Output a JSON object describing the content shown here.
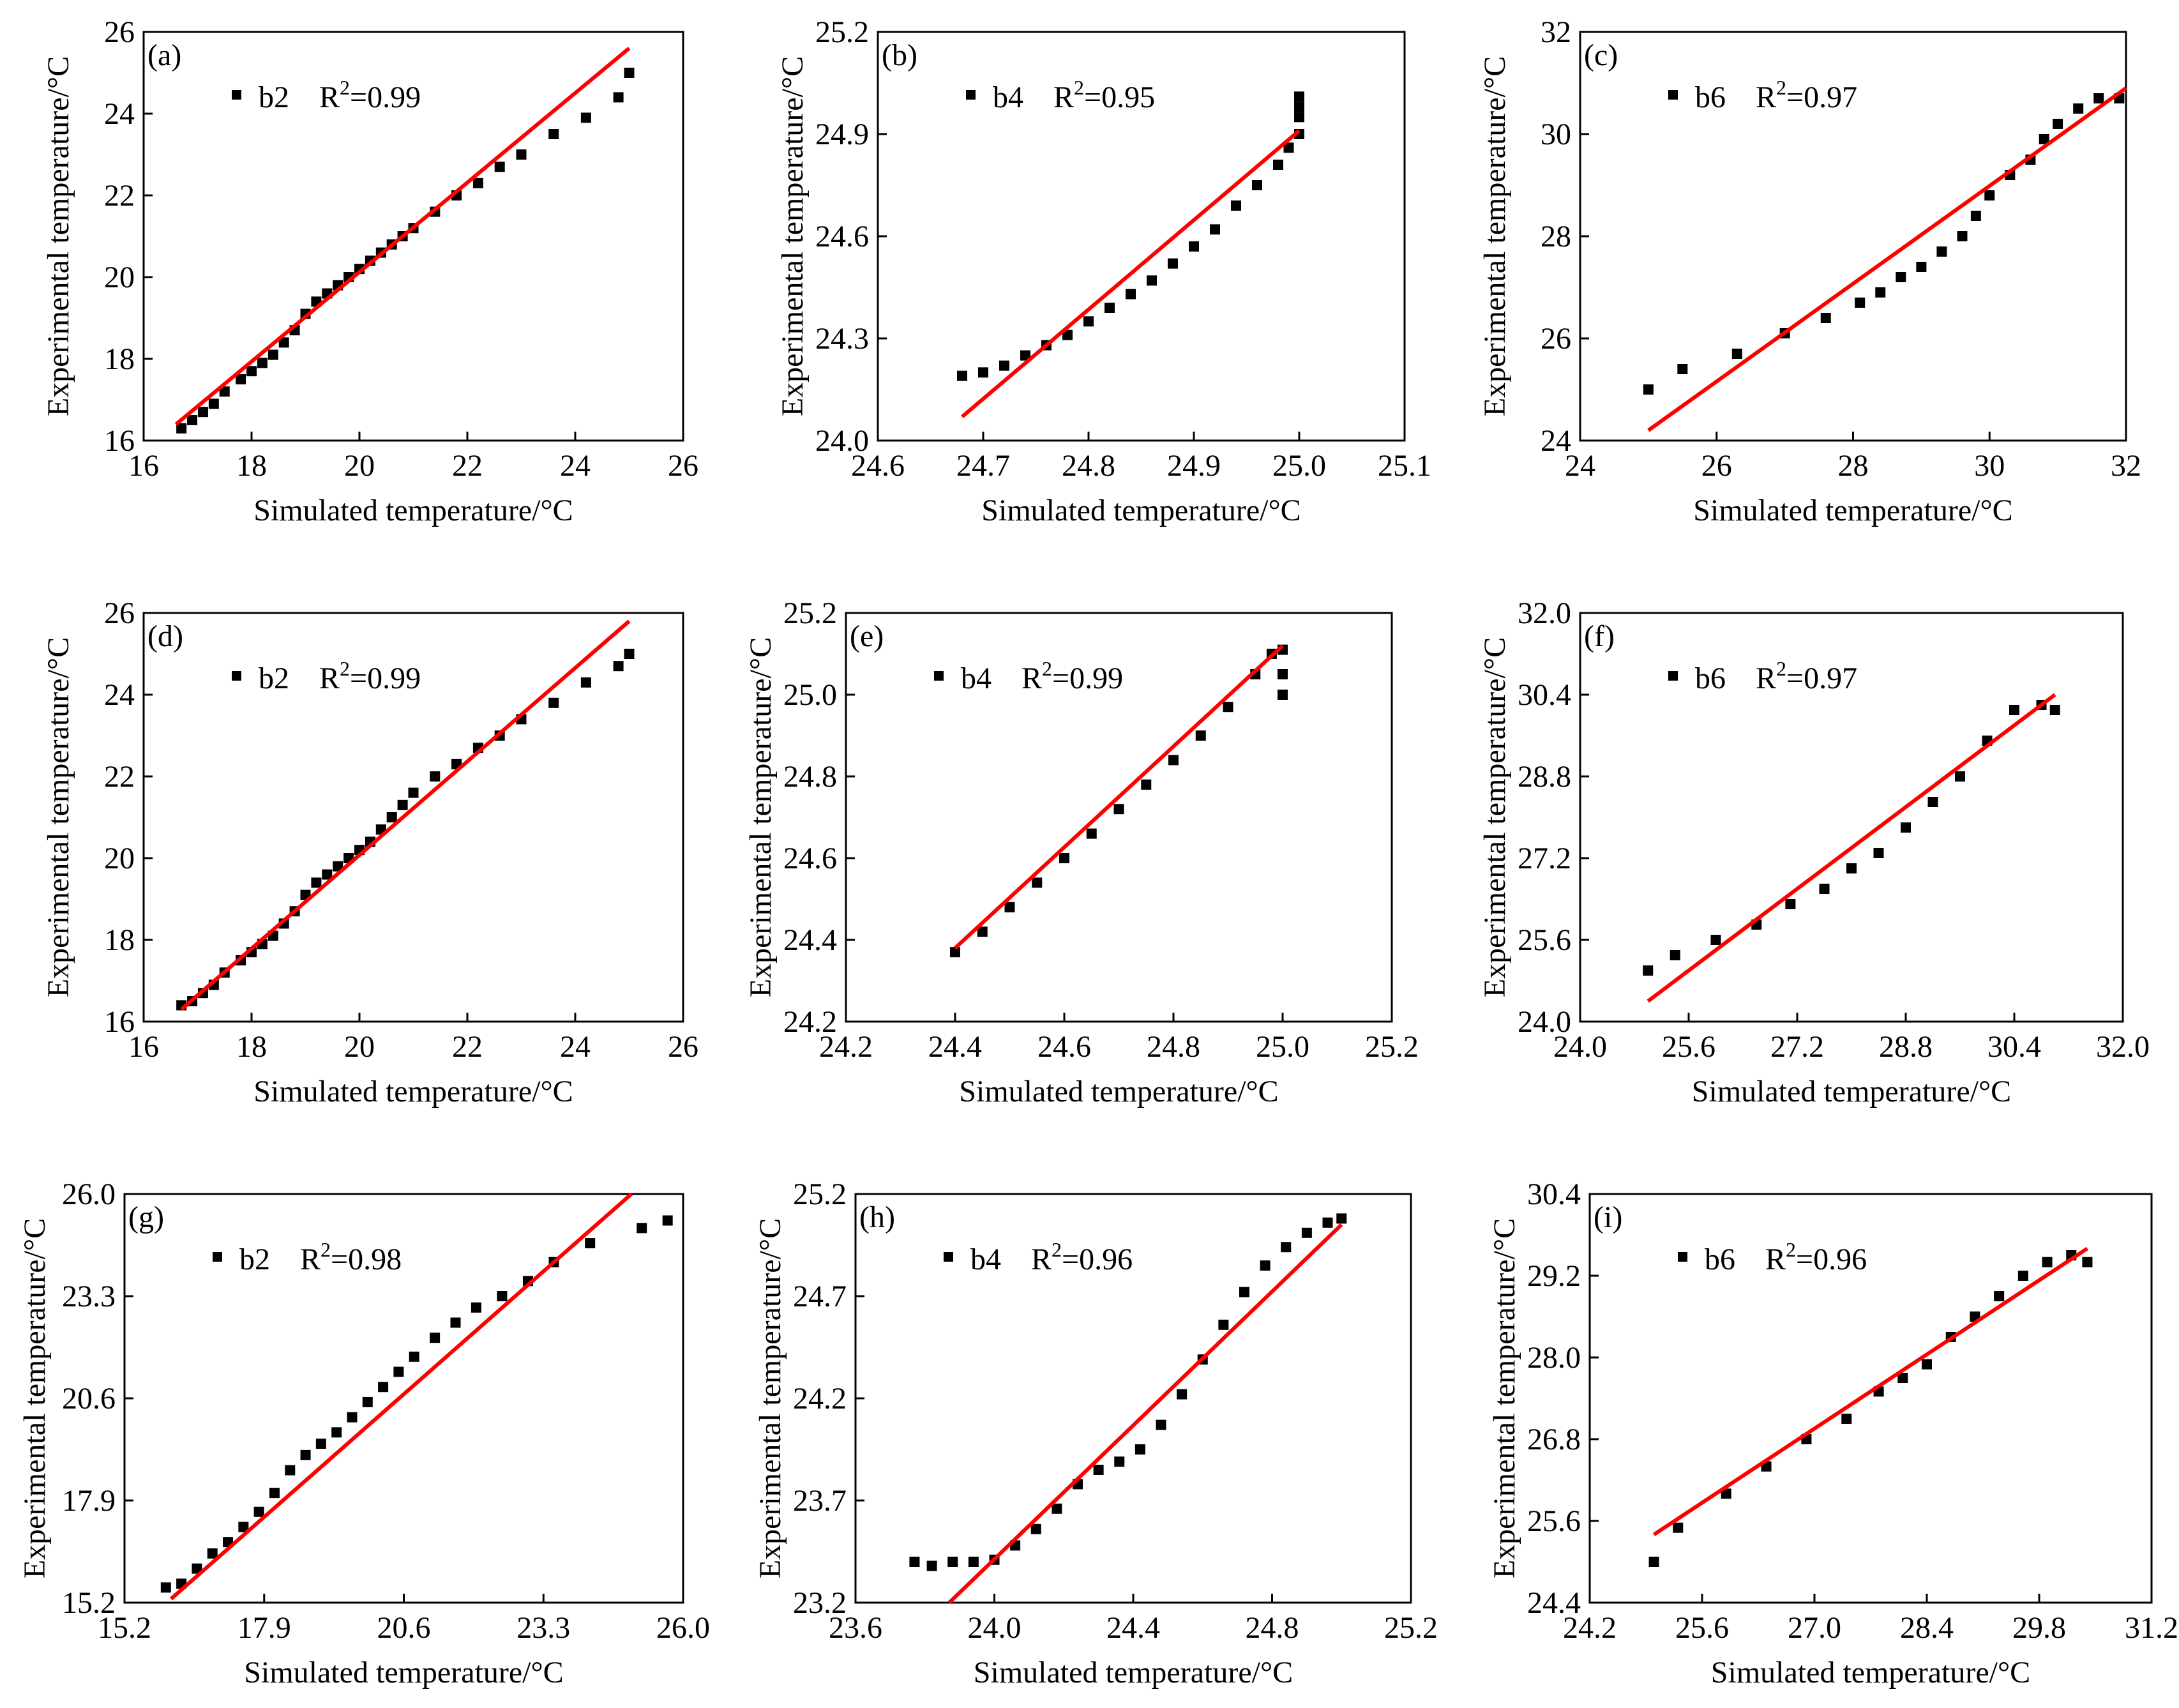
{
  "figure": {
    "xlabel": "Simulated temperature/°C",
    "ylabel": "Experimental temperature/°C",
    "colors": {
      "points": "#000000",
      "fit_line": "#ff0000",
      "axes": "#000000"
    }
  },
  "chart_data": [
    {
      "id": "a",
      "panel_label": "(a)",
      "type": "scatter",
      "legend": {
        "series": "b2",
        "r2_label": "R",
        "r2_sup": "2",
        "r2_value": "=0.99"
      },
      "xlim": [
        16,
        26
      ],
      "ylim": [
        16,
        26
      ],
      "xticks": [
        "16",
        "18",
        "20",
        "22",
        "24",
        "26"
      ],
      "yticks": [
        "16",
        "18",
        "20",
        "22",
        "24",
        "26"
      ],
      "x": [
        16.7,
        16.9,
        17.1,
        17.3,
        17.5,
        17.8,
        18.0,
        18.2,
        18.4,
        18.6,
        18.8,
        19.0,
        19.2,
        19.4,
        19.6,
        19.8,
        20.0,
        20.2,
        20.4,
        20.6,
        20.8,
        21.0,
        21.4,
        21.8,
        22.2,
        22.6,
        23.0,
        23.6,
        24.2,
        24.8,
        25.0
      ],
      "y": [
        16.3,
        16.5,
        16.7,
        16.9,
        17.2,
        17.5,
        17.7,
        17.9,
        18.1,
        18.4,
        18.7,
        19.1,
        19.4,
        19.6,
        19.8,
        20.0,
        20.2,
        20.4,
        20.6,
        20.8,
        21.0,
        21.2,
        21.6,
        22.0,
        22.3,
        22.7,
        23.0,
        23.5,
        23.9,
        24.4,
        25.0
      ],
      "fit": {
        "x": [
          16.6,
          25.0
        ],
        "y": [
          16.4,
          25.6
        ]
      }
    },
    {
      "id": "b",
      "panel_label": "(b)",
      "type": "scatter",
      "legend": {
        "series": "b4",
        "r2_label": "R",
        "r2_sup": "2",
        "r2_value": "=0.95"
      },
      "xlim": [
        24.6,
        25.1
      ],
      "ylim": [
        24.0,
        25.2
      ],
      "xticks": [
        "24.6",
        "24.7",
        "24.8",
        "24.9",
        "25.0",
        "25.1"
      ],
      "yticks": [
        "24.0",
        "24.3",
        "24.6",
        "24.9",
        "25.2"
      ],
      "x": [
        24.68,
        24.7,
        24.72,
        24.74,
        24.76,
        24.78,
        24.8,
        24.82,
        24.84,
        24.86,
        24.88,
        24.9,
        24.92,
        24.94,
        24.96,
        24.98,
        24.99,
        25.0,
        25.0,
        25.0,
        25.0
      ],
      "y": [
        24.19,
        24.2,
        24.22,
        24.25,
        24.28,
        24.31,
        24.35,
        24.39,
        24.43,
        24.47,
        24.52,
        24.57,
        24.62,
        24.69,
        24.75,
        24.81,
        24.86,
        24.9,
        24.95,
        24.98,
        25.01
      ],
      "fit": {
        "x": [
          24.68,
          25.0
        ],
        "y": [
          24.07,
          24.91
        ]
      }
    },
    {
      "id": "c",
      "panel_label": "(c)",
      "type": "scatter",
      "legend": {
        "series": "b6",
        "r2_label": "R",
        "r2_sup": "2",
        "r2_value": "=0.97"
      },
      "xlim": [
        24,
        32
      ],
      "ylim": [
        24,
        32
      ],
      "xticks": [
        "24",
        "26",
        "28",
        "30",
        "32"
      ],
      "yticks": [
        "24",
        "26",
        "28",
        "30",
        "32"
      ],
      "x": [
        25.0,
        25.5,
        26.3,
        27.0,
        27.6,
        28.1,
        28.4,
        28.7,
        29.0,
        29.3,
        29.6,
        29.8,
        30.0,
        30.3,
        30.6,
        30.8,
        31.0,
        31.3,
        31.6,
        31.9
      ],
      "y": [
        25.0,
        25.4,
        25.7,
        26.1,
        26.4,
        26.7,
        26.9,
        27.2,
        27.4,
        27.7,
        28.0,
        28.4,
        28.8,
        29.2,
        29.5,
        29.9,
        30.2,
        30.5,
        30.7,
        30.7
      ],
      "fit": {
        "x": [
          25.0,
          32.0
        ],
        "y": [
          24.2,
          30.9
        ]
      }
    },
    {
      "id": "d",
      "panel_label": "(d)",
      "type": "scatter",
      "legend": {
        "series": "b2",
        "r2_label": "R",
        "r2_sup": "2",
        "r2_value": "=0.99"
      },
      "xlim": [
        16,
        26
      ],
      "ylim": [
        16,
        26
      ],
      "xticks": [
        "16",
        "18",
        "20",
        "22",
        "24",
        "26"
      ],
      "yticks": [
        "16",
        "18",
        "20",
        "22",
        "24",
        "26"
      ],
      "x": [
        16.7,
        16.9,
        17.1,
        17.3,
        17.5,
        17.8,
        18.0,
        18.2,
        18.4,
        18.6,
        18.8,
        19.0,
        19.2,
        19.4,
        19.6,
        19.8,
        20.0,
        20.2,
        20.4,
        20.6,
        20.8,
        21.0,
        21.4,
        21.8,
        22.2,
        22.6,
        23.0,
        23.6,
        24.2,
        24.8,
        25.0
      ],
      "y": [
        16.4,
        16.5,
        16.7,
        16.9,
        17.2,
        17.5,
        17.7,
        17.9,
        18.1,
        18.4,
        18.7,
        19.1,
        19.4,
        19.6,
        19.8,
        20.0,
        20.2,
        20.4,
        20.7,
        21.0,
        21.3,
        21.6,
        22.0,
        22.3,
        22.7,
        23.0,
        23.4,
        23.8,
        24.3,
        24.7,
        25.0
      ],
      "fit": {
        "x": [
          16.7,
          25.0
        ],
        "y": [
          16.3,
          25.8
        ]
      }
    },
    {
      "id": "e",
      "panel_label": "(e)",
      "type": "scatter",
      "legend": {
        "series": "b4",
        "r2_label": "R",
        "r2_sup": "2",
        "r2_value": "=0.99"
      },
      "xlim": [
        24.2,
        25.2
      ],
      "ylim": [
        24.2,
        25.2
      ],
      "xticks": [
        "24.2",
        "24.4",
        "24.6",
        "24.8",
        "25.0",
        "25.2"
      ],
      "yticks": [
        "24.2",
        "24.4",
        "24.6",
        "24.8",
        "25.0",
        "25.2"
      ],
      "x": [
        24.4,
        24.45,
        24.5,
        24.55,
        24.6,
        24.65,
        24.7,
        24.75,
        24.8,
        24.85,
        24.9,
        24.95,
        24.98,
        25.0,
        25.0,
        25.0
      ],
      "y": [
        24.37,
        24.42,
        24.48,
        24.54,
        24.6,
        24.66,
        24.72,
        24.78,
        24.84,
        24.9,
        24.97,
        25.05,
        25.1,
        25.11,
        25.05,
        25.0
      ],
      "fit": {
        "x": [
          24.4,
          25.0
        ],
        "y": [
          24.38,
          25.12
        ]
      }
    },
    {
      "id": "f",
      "panel_label": "(f)",
      "type": "scatter",
      "legend": {
        "series": "b6",
        "r2_label": "R",
        "r2_sup": "2",
        "r2_value": "=0.97"
      },
      "xlim": [
        24.0,
        32.0
      ],
      "ylim": [
        24.0,
        32.0
      ],
      "xticks": [
        "24.0",
        "25.6",
        "27.2",
        "28.8",
        "30.4",
        "32.0"
      ],
      "yticks": [
        "24.0",
        "25.6",
        "27.2",
        "28.8",
        "30.4",
        "32.0"
      ],
      "x": [
        25.0,
        25.4,
        26.0,
        26.6,
        27.1,
        27.6,
        28.0,
        28.4,
        28.8,
        29.2,
        29.6,
        30.0,
        30.4,
        30.8,
        31.0
      ],
      "y": [
        25.0,
        25.3,
        25.6,
        25.9,
        26.3,
        26.6,
        27.0,
        27.3,
        27.8,
        28.3,
        28.8,
        29.5,
        30.1,
        30.2,
        30.1
      ],
      "fit": {
        "x": [
          25.0,
          31.0
        ],
        "y": [
          24.4,
          30.4
        ]
      }
    },
    {
      "id": "g",
      "panel_label": "(g)",
      "type": "scatter",
      "legend": {
        "series": "b2",
        "r2_label": "R",
        "r2_sup": "2",
        "r2_value": "=0.98"
      },
      "xlim": [
        15.2,
        26.0
      ],
      "ylim": [
        15.2,
        26.0
      ],
      "xticks": [
        "15.2",
        "17.9",
        "20.6",
        "23.3",
        "26.0"
      ],
      "yticks": [
        "15.2",
        "17.9",
        "20.6",
        "23.3",
        "26.0"
      ],
      "x": [
        16.0,
        16.3,
        16.6,
        16.9,
        17.2,
        17.5,
        17.8,
        18.1,
        18.4,
        18.7,
        19.0,
        19.3,
        19.6,
        19.9,
        20.2,
        20.5,
        20.8,
        21.2,
        21.6,
        22.0,
        22.5,
        23.0,
        23.5,
        24.2,
        25.2,
        25.7
      ],
      "y": [
        15.6,
        15.7,
        16.1,
        16.5,
        16.8,
        17.2,
        17.6,
        18.1,
        18.7,
        19.1,
        19.4,
        19.7,
        20.1,
        20.5,
        20.9,
        21.3,
        21.7,
        22.2,
        22.6,
        23.0,
        23.3,
        23.7,
        24.2,
        24.7,
        25.1,
        25.3
      ],
      "fit": {
        "x": [
          16.1,
          25.0
        ],
        "y": [
          15.3,
          26.0
        ]
      }
    },
    {
      "id": "h",
      "panel_label": "(h)",
      "type": "scatter",
      "legend": {
        "series": "b4",
        "r2_label": "R",
        "r2_sup": "2",
        "r2_value": "=0.96"
      },
      "xlim": [
        23.6,
        25.2
      ],
      "ylim": [
        23.2,
        25.2
      ],
      "xticks": [
        "23.6",
        "24.0",
        "24.4",
        "24.8",
        "25.2"
      ],
      "yticks": [
        "23.2",
        "23.7",
        "24.2",
        "24.7",
        "25.2"
      ],
      "x": [
        23.77,
        23.82,
        23.88,
        23.94,
        24.0,
        24.06,
        24.12,
        24.18,
        24.24,
        24.3,
        24.36,
        24.42,
        24.48,
        24.54,
        24.6,
        24.66,
        24.72,
        24.78,
        24.84,
        24.9,
        24.96,
        25.0
      ],
      "y": [
        23.4,
        23.38,
        23.4,
        23.4,
        23.41,
        23.48,
        23.56,
        23.66,
        23.78,
        23.85,
        23.89,
        23.95,
        24.07,
        24.22,
        24.39,
        24.56,
        24.72,
        24.85,
        24.94,
        25.01,
        25.06,
        25.08
      ],
      "fit": {
        "x": [
          23.87,
          25.0
        ],
        "y": [
          23.2,
          25.05
        ]
      }
    },
    {
      "id": "i",
      "panel_label": "(i)",
      "type": "scatter",
      "legend": {
        "series": "b6",
        "r2_label": "R",
        "r2_sup": "2",
        "r2_value": "=0.96"
      },
      "xlim": [
        24.2,
        31.2
      ],
      "ylim": [
        24.4,
        30.4
      ],
      "xticks": [
        "24.2",
        "25.6",
        "27.0",
        "28.4",
        "29.8",
        "31.2"
      ],
      "yticks": [
        "24.4",
        "25.6",
        "26.8",
        "28.0",
        "29.2",
        "30.4"
      ],
      "x": [
        25.0,
        25.3,
        25.9,
        26.4,
        26.9,
        27.4,
        27.8,
        28.1,
        28.4,
        28.7,
        29.0,
        29.3,
        29.6,
        29.9,
        30.2,
        30.4
      ],
      "y": [
        25.0,
        25.5,
        26.0,
        26.4,
        26.8,
        27.1,
        27.5,
        27.7,
        27.9,
        28.3,
        28.6,
        28.9,
        29.2,
        29.4,
        29.5,
        29.4
      ],
      "fit": {
        "x": [
          25.0,
          30.4
        ],
        "y": [
          25.4,
          29.6
        ]
      }
    }
  ]
}
